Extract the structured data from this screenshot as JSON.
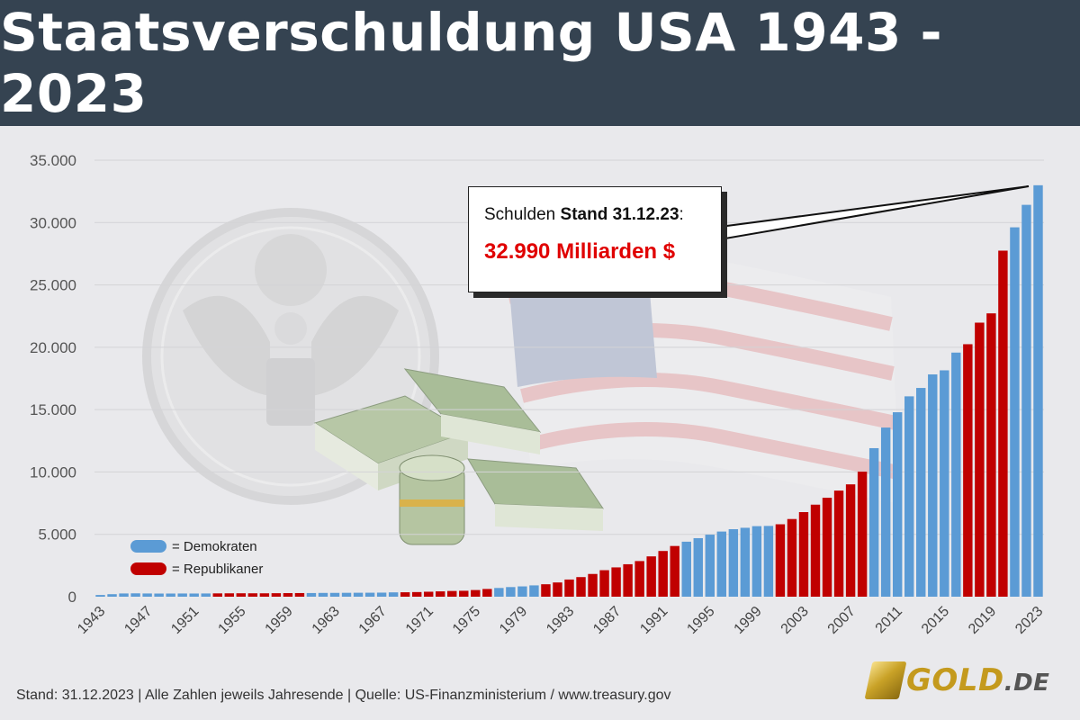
{
  "header": {
    "title": "Staatsverschuldung USA 1943 - 2023"
  },
  "callout": {
    "prefix": "Schulden ",
    "stand": "Stand 31.12.23",
    "colon": ":",
    "value": "32.990 Milliarden $"
  },
  "legend": {
    "items": [
      {
        "label": "= Demokraten",
        "color": "#5b9bd5"
      },
      {
        "label": "= Republikaner",
        "color": "#c00000"
      }
    ]
  },
  "footer": {
    "text": "Stand: 31.12.2023  |  Alle Zahlen jeweils Jahresende  |  Quelle: US-Finanzministerium / www.treasury.gov"
  },
  "logo": {
    "main": "GOLD",
    "suffix": ".DE"
  },
  "images": {
    "background": [
      "us-seal",
      "us-flag",
      "dollar-bundles"
    ]
  },
  "chart_data": {
    "type": "bar",
    "ylim": [
      0,
      35000
    ],
    "yticks": [
      0,
      5000,
      10000,
      15000,
      20000,
      25000,
      30000,
      35000
    ],
    "ytick_labels": [
      "0",
      "5.000",
      "10.000",
      "15.000",
      "20.000",
      "25.000",
      "30.000",
      "35.000"
    ],
    "grid": true,
    "colors": {
      "D": "#5b9bd5",
      "R": "#c00000"
    },
    "xtick_labels": [
      "1943",
      "1947",
      "1951",
      "1955",
      "1959",
      "1963",
      "1967",
      "1971",
      "1975",
      "1979",
      "1983",
      "1987",
      "1991",
      "1995",
      "1999",
      "2003",
      "2007",
      "2011",
      "2015",
      "2019",
      "2023"
    ],
    "x": [
      1943,
      1944,
      1945,
      1946,
      1947,
      1948,
      1949,
      1950,
      1951,
      1952,
      1953,
      1954,
      1955,
      1956,
      1957,
      1958,
      1959,
      1960,
      1961,
      1962,
      1963,
      1964,
      1965,
      1966,
      1967,
      1968,
      1969,
      1970,
      1971,
      1972,
      1973,
      1974,
      1975,
      1976,
      1977,
      1978,
      1979,
      1980,
      1981,
      1982,
      1983,
      1984,
      1985,
      1986,
      1987,
      1988,
      1989,
      1990,
      1991,
      1992,
      1993,
      1994,
      1995,
      1996,
      1997,
      1998,
      1999,
      2000,
      2001,
      2002,
      2003,
      2004,
      2005,
      2006,
      2007,
      2008,
      2009,
      2010,
      2011,
      2012,
      2013,
      2014,
      2015,
      2016,
      2017,
      2018,
      2019,
      2020,
      2021,
      2022,
      2023
    ],
    "values": [
      137,
      201,
      259,
      269,
      258,
      252,
      253,
      257,
      255,
      259,
      266,
      271,
      274,
      273,
      272,
      280,
      287,
      291,
      293,
      303,
      306,
      312,
      317,
      320,
      326,
      348,
      355,
      371,
      398,
      427,
      458,
      475,
      533,
      620,
      699,
      772,
      827,
      908,
      998,
      1142,
      1377,
      1572,
      1823,
      2125,
      2350,
      2602,
      2857,
      3233,
      3665,
      4065,
      4411,
      4693,
      4974,
      5225,
      5413,
      5526,
      5656,
      5674,
      5807,
      6228,
      6783,
      7379,
      7933,
      8507,
      9008,
      10025,
      11910,
      13562,
      14790,
      16066,
      16738,
      17824,
      18151,
      19573,
      20245,
      21974,
      22719,
      27748,
      29617,
      31420,
      32990
    ],
    "party": [
      "D",
      "D",
      "D",
      "D",
      "D",
      "D",
      "D",
      "D",
      "D",
      "D",
      "R",
      "R",
      "R",
      "R",
      "R",
      "R",
      "R",
      "R",
      "D",
      "D",
      "D",
      "D",
      "D",
      "D",
      "D",
      "D",
      "R",
      "R",
      "R",
      "R",
      "R",
      "R",
      "R",
      "R",
      "D",
      "D",
      "D",
      "D",
      "R",
      "R",
      "R",
      "R",
      "R",
      "R",
      "R",
      "R",
      "R",
      "R",
      "R",
      "R",
      "D",
      "D",
      "D",
      "D",
      "D",
      "D",
      "D",
      "D",
      "R",
      "R",
      "R",
      "R",
      "R",
      "R",
      "R",
      "R",
      "D",
      "D",
      "D",
      "D",
      "D",
      "D",
      "D",
      "D",
      "R",
      "R",
      "R",
      "R",
      "D",
      "D",
      "D"
    ]
  }
}
